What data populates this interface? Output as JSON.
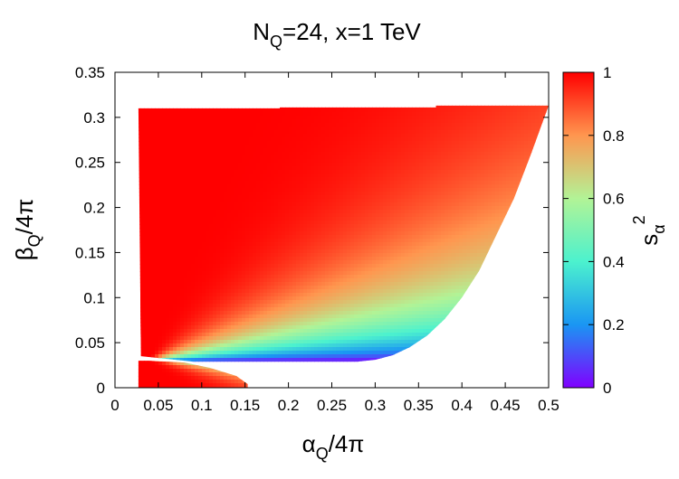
{
  "chart_data": {
    "type": "heatmap",
    "title": {
      "base": "N",
      "sub": "Q",
      "rest": "=24, x=1 TeV"
    },
    "xlabel": {
      "base": "α",
      "sub": "Q",
      "rest": "/4π"
    },
    "ylabel": {
      "base": "β",
      "sub": "Q",
      "rest": "/4π"
    },
    "colorbar_label": {
      "base": "s",
      "sub": "α",
      "sup": "2"
    },
    "xlim": [
      0,
      0.5
    ],
    "ylim": [
      0,
      0.35
    ],
    "zlim": [
      0,
      1
    ],
    "x_ticks": [
      "0",
      "0.05",
      "0.1",
      "0.15",
      "0.2",
      "0.25",
      "0.3",
      "0.35",
      "0.4",
      "0.45",
      "0.5"
    ],
    "y_ticks": [
      "0",
      "0.05",
      "0.1",
      "0.15",
      "0.2",
      "0.25",
      "0.3",
      "0.35"
    ],
    "colorbar_ticks": [
      "0",
      "0.2",
      "0.4",
      "0.6",
      "0.8",
      "1"
    ],
    "colormap": [
      "#8000ff",
      "#1a96f3",
      "#4cf2ce",
      "#b2f396",
      "#ff964f",
      "#ff0000"
    ],
    "top_edge": [
      [
        0.027,
        0.31
      ],
      [
        0.19,
        0.31
      ],
      [
        0.19,
        0.311
      ],
      [
        0.37,
        0.311
      ],
      [
        0.37,
        0.313
      ],
      [
        0.5,
        0.313
      ]
    ],
    "right_edge": [
      [
        0.5,
        0.313
      ],
      [
        0.48,
        0.26
      ],
      [
        0.46,
        0.21
      ],
      [
        0.44,
        0.17
      ],
      [
        0.42,
        0.13
      ],
      [
        0.4,
        0.1
      ],
      [
        0.38,
        0.076
      ],
      [
        0.36,
        0.058
      ],
      [
        0.34,
        0.045
      ],
      [
        0.32,
        0.036
      ],
      [
        0.3,
        0.031
      ],
      [
        0.28,
        0.029
      ]
    ],
    "bottom_edge": [
      [
        0.28,
        0.029
      ],
      [
        0.09,
        0.029
      ],
      [
        0.03,
        0.035
      ]
    ],
    "lower_lobe": [
      [
        0.04,
        0.03
      ],
      [
        0.08,
        0.028
      ],
      [
        0.11,
        0.022
      ],
      [
        0.14,
        0.013
      ],
      [
        0.153,
        0.004
      ],
      [
        0.153,
        0.0
      ],
      [
        0.027,
        0.0
      ],
      [
        0.027,
        0.03
      ]
    ],
    "pinch_point": [
      0.038,
      0.035
    ]
  }
}
